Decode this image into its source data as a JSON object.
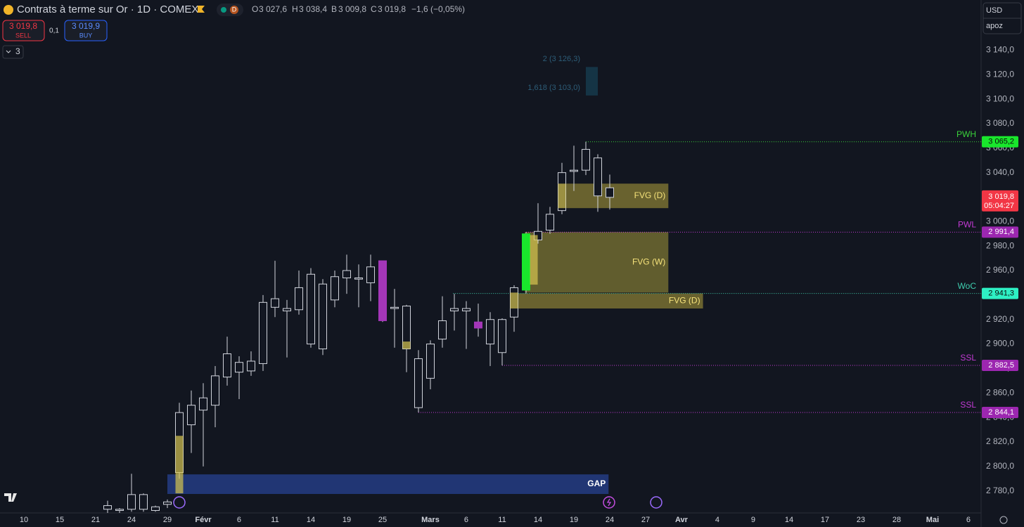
{
  "header": {
    "title": "Contrats à terme sur Or · 1D · COMEX",
    "badge": "D",
    "ohlc": [
      {
        "key": "O",
        "value": "3 027,6"
      },
      {
        "key": "H",
        "value": "3 038,4"
      },
      {
        "key": "B",
        "value": "3 009,8"
      },
      {
        "key": "C",
        "value": "3 019,8"
      }
    ],
    "change": "−1,6 (−0,05%)",
    "sell": {
      "price": "3 019,8",
      "label": "SELL"
    },
    "spread": "0,1",
    "buy": {
      "price": "3 019,9",
      "label": "BUY"
    },
    "indicators": "3",
    "currency": "USD",
    "unit": "apoz"
  },
  "chart_data": {
    "type": "candlestick",
    "x": [
      7,
      8,
      9,
      10,
      11,
      12,
      13,
      14,
      15,
      16,
      17,
      18,
      19,
      20,
      21,
      22,
      23,
      24,
      25,
      26,
      27,
      28,
      29,
      30,
      31,
      32,
      33,
      34,
      35,
      36,
      37,
      38,
      39,
      40,
      41,
      42,
      43,
      44,
      45,
      46,
      47,
      48,
      49
    ],
    "open": [
      2765,
      2764,
      2765,
      2777,
      2767,
      2769,
      2795,
      2834,
      2846,
      2850,
      2873,
      2885,
      2878,
      2884,
      2930,
      2927,
      2928,
      2957,
      2896,
      2936,
      2954,
      2953,
      2950,
      2968,
      2930,
      2931,
      2888,
      2872,
      2904,
      2927,
      2927,
      2918,
      2920,
      2893,
      2922,
      2944,
      2985,
      2993,
      3009,
      3041,
      3042,
      3052,
      3027.6
    ],
    "high": [
      2772,
      2766,
      2794,
      2778,
      2768,
      2773,
      2852,
      2862,
      2868,
      2882,
      2906,
      2890,
      2894,
      2940,
      2968,
      2936,
      2960,
      2962,
      2953,
      2960,
      2973,
      2965,
      2973,
      2968,
      2945,
      2932,
      2895,
      2903,
      2939,
      2941,
      2935,
      2933,
      2926,
      2921,
      2948,
      2991.4,
      3015,
      3012,
      3048,
      3062,
      3065.2,
      3055,
      3038.4
    ],
    "low": [
      2762,
      2762,
      2763,
      2763,
      2763,
      2766,
      2790,
      2811,
      2800,
      2832,
      2866,
      2855,
      2874,
      2878,
      2922,
      2889,
      2924,
      2897,
      2891,
      2930,
      2941,
      2930,
      2935,
      2918,
      2897,
      2877,
      2844.1,
      2863,
      2897,
      2911,
      2896,
      2906,
      2882,
      2882.5,
      2910,
      2941.3,
      2982,
      2990,
      3006,
      3025,
      3038,
      3008,
      3009.8
    ],
    "close": [
      2768,
      2765,
      2777,
      2765,
      2764,
      2771,
      2844,
      2850,
      2856,
      2874,
      2892,
      2877,
      2886,
      2934,
      2937,
      2929,
      2946,
      2900,
      2949,
      2955,
      2960,
      2954,
      2963,
      2919,
      2929,
      2896,
      2848,
      2900,
      2919,
      2929,
      2929,
      2913,
      2900,
      2920,
      2946,
      2990,
      2992,
      3006,
      3040,
      3042,
      3059,
      3021,
      3019.8
    ],
    "colors": [
      "#131722",
      "#131722",
      "#131722",
      "#131722",
      "#131722",
      "#131722",
      "#131722",
      "#131722",
      "#131722",
      "#131722",
      "#131722",
      "#131722",
      "#131722",
      "#131722",
      "#131722",
      "#131722",
      "#131722",
      "#131722",
      "#131722",
      "#131722",
      "#131722",
      "#131722",
      "#131722",
      "#a436b8",
      "#131722",
      "#131722",
      "#131722",
      "#131722",
      "#131722",
      "#131722",
      "#131722",
      "#a436b8",
      "#131722",
      "#131722",
      "#131722",
      "#19e62c",
      "#131722",
      "#131722",
      "#131722",
      "#131722",
      "#131722",
      "#131722",
      "#131722"
    ],
    "outline": "#d1d4dc",
    "xlim": [
      -2,
      80.06
    ],
    "ylim": [
      2762,
      3181
    ],
    "xticks": [
      {
        "value": 0,
        "label": "10"
      },
      {
        "value": 3,
        "label": "15"
      },
      {
        "value": 6,
        "label": "21"
      },
      {
        "value": 9,
        "label": "24"
      },
      {
        "value": 12,
        "label": "29"
      },
      {
        "value": 15,
        "label": "Févr"
      },
      {
        "value": 18,
        "label": "6"
      },
      {
        "value": 21,
        "label": "11"
      },
      {
        "value": 24,
        "label": "14"
      },
      {
        "value": 27,
        "label": "19"
      },
      {
        "value": 30,
        "label": "25"
      },
      {
        "value": 34,
        "label": "Mars"
      },
      {
        "value": 37,
        "label": "6"
      },
      {
        "value": 40,
        "label": "11"
      },
      {
        "value": 43,
        "label": "14"
      },
      {
        "value": 46,
        "label": "19"
      },
      {
        "value": 49,
        "label": "24"
      },
      {
        "value": 52,
        "label": "27"
      },
      {
        "value": 55,
        "label": "Avr"
      },
      {
        "value": 58,
        "label": "4"
      },
      {
        "value": 61,
        "label": "9"
      },
      {
        "value": 64,
        "label": "14"
      },
      {
        "value": 67,
        "label": "17"
      },
      {
        "value": 70,
        "label": "23"
      },
      {
        "value": 73,
        "label": "28"
      },
      {
        "value": 76,
        "label": "Mai"
      },
      {
        "value": 79,
        "label": "6"
      }
    ],
    "yticks": [
      {
        "value": 3140,
        "label": "3 140,0"
      },
      {
        "value": 3120,
        "label": "3 120,0"
      },
      {
        "value": 3100,
        "label": "3 100,0"
      },
      {
        "value": 3080,
        "label": "3 080,0"
      },
      {
        "value": 3060,
        "label": "3 060,0"
      },
      {
        "value": 3040,
        "label": "3 040,0"
      },
      {
        "value": 3020,
        "label": "3 020,0"
      },
      {
        "value": 3000,
        "label": "3 000,0"
      },
      {
        "value": 2980,
        "label": "2 980,0"
      },
      {
        "value": 2960,
        "label": "2 960,0"
      },
      {
        "value": 2940,
        "label": "2 940,0"
      },
      {
        "value": 2920,
        "label": "2 920,0"
      },
      {
        "value": 2900,
        "label": "2 900,0"
      },
      {
        "value": 2880,
        "label": "2 880,0"
      },
      {
        "value": 2860,
        "label": "2 860,0"
      },
      {
        "value": 2840,
        "label": "2 840,0"
      },
      {
        "value": 2820,
        "label": "2 820,0"
      },
      {
        "value": 2800,
        "label": "2 800,0"
      },
      {
        "value": 2780,
        "label": "2 780,0"
      }
    ],
    "grid": false,
    "zones": [
      {
        "label": "FVG (D)",
        "from": 44.9,
        "to": 53.9,
        "range": [
          3011,
          3031
        ],
        "color": "rgba(176,163,60,0.55)",
        "text_color": "#f5e27a"
      },
      {
        "label": "FVG (W)",
        "from": 41.9,
        "to": 53.9,
        "range": [
          2942,
          2991.4
        ],
        "color": "rgba(176,163,60,0.5)",
        "text_color": "#f5e27a"
      },
      {
        "label": "FVG (D)",
        "from": 40.9,
        "to": 56.8,
        "range": [
          2929,
          2941.3
        ],
        "color": "rgba(176,163,60,0.55)",
        "text_color": "#f5e27a"
      },
      {
        "label": "GAP",
        "from": 12,
        "to": 48.9,
        "range": [
          2777.5,
          2793.5
        ],
        "color": "rgba(38,62,138,0.8)",
        "text_color": "#ffffff"
      }
    ],
    "highlights": [
      {
        "x": 13,
        "range": [
          2778,
          2825
        ]
      },
      {
        "x": 32,
        "range": [
          2896,
          2902
        ]
      },
      {
        "x": 41,
        "range": [
          2929,
          2942
        ]
      },
      {
        "x": 42.65,
        "range": [
          2948.5,
          2989
        ]
      },
      {
        "x": 45,
        "range": [
          3011,
          3031
        ]
      }
    ],
    "highlight_color": "rgba(214,196,80,0.7)",
    "levels": [
      {
        "name": "PWH",
        "value": 3065.2,
        "label": "3 065,2",
        "from": 47,
        "color": "#3ad13a",
        "box": "#19e62c",
        "box_text": "#0a0a0a"
      },
      {
        "name": "PWL",
        "value": 2991.4,
        "label": "2 991,4",
        "from": 42,
        "color": "#c23ad4",
        "box": "#9c27b0",
        "box_text": "#ffffff"
      },
      {
        "name": "WoC",
        "value": 2941.3,
        "label": "2 941,3",
        "from": 35.9,
        "color": "#3fcfb0",
        "box": "#2ef0c4",
        "box_text": "#0a0a0a"
      },
      {
        "name": "SSL",
        "value": 2882.5,
        "label": "2 882,5",
        "from": 40,
        "color": "#c23ad4",
        "box": "#9c27b0",
        "box_text": "#ffffff"
      },
      {
        "name": "SSL",
        "value": 2844.1,
        "label": "2 844,1",
        "from": 33,
        "color": "#c23ad4",
        "box": "#9c27b0",
        "box_text": "#ffffff"
      }
    ],
    "last": {
      "value": 3019.8,
      "label": "3 019,8",
      "countdown": "05:04:27",
      "color": "#f23645"
    },
    "fib": {
      "from": 47,
      "to": 48,
      "color": "rgba(30,110,140,0.35)",
      "text_color": "#2d5d78",
      "levels": [
        {
          "label": "2 (3 126,3)",
          "value": 3126.3
        },
        {
          "label": "1,618 (3 103,0)",
          "value": 3103
        }
      ]
    }
  }
}
